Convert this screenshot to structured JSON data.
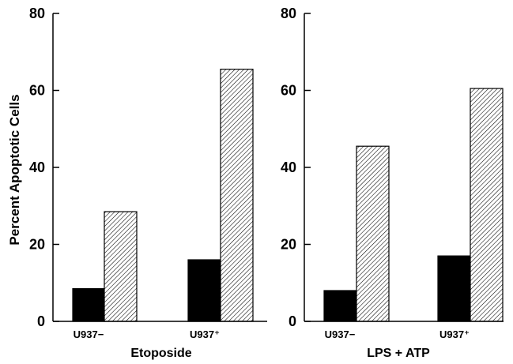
{
  "chart_data": [
    {
      "type": "bar",
      "xlabel": "Etoposide",
      "ylabel": "Percent Apoptotic Cells",
      "ylim": [
        0,
        80
      ],
      "yticks": [
        "0",
        "20",
        "40",
        "60",
        "80"
      ],
      "categories": [
        "U937−",
        "U937⁺"
      ],
      "series": [
        {
          "values": [
            8.5,
            16
          ],
          "color": "#000000",
          "fill": "solid"
        },
        {
          "values": [
            28.5,
            65.5
          ],
          "color": "#000000",
          "fill": "diagonal-hatch"
        }
      ],
      "grid": false
    },
    {
      "type": "bar",
      "xlabel": "LPS + ATP",
      "ylabel": "",
      "ylim": [
        0,
        80
      ],
      "yticks": [
        "0",
        "20",
        "40",
        "60",
        "80"
      ],
      "categories": [
        "U937−",
        "U937⁺"
      ],
      "series": [
        {
          "values": [
            8,
            17
          ],
          "color": "#000000",
          "fill": "solid"
        },
        {
          "values": [
            45.5,
            60.5
          ],
          "color": "#000000",
          "fill": "diagonal-hatch"
        }
      ],
      "grid": false
    }
  ]
}
